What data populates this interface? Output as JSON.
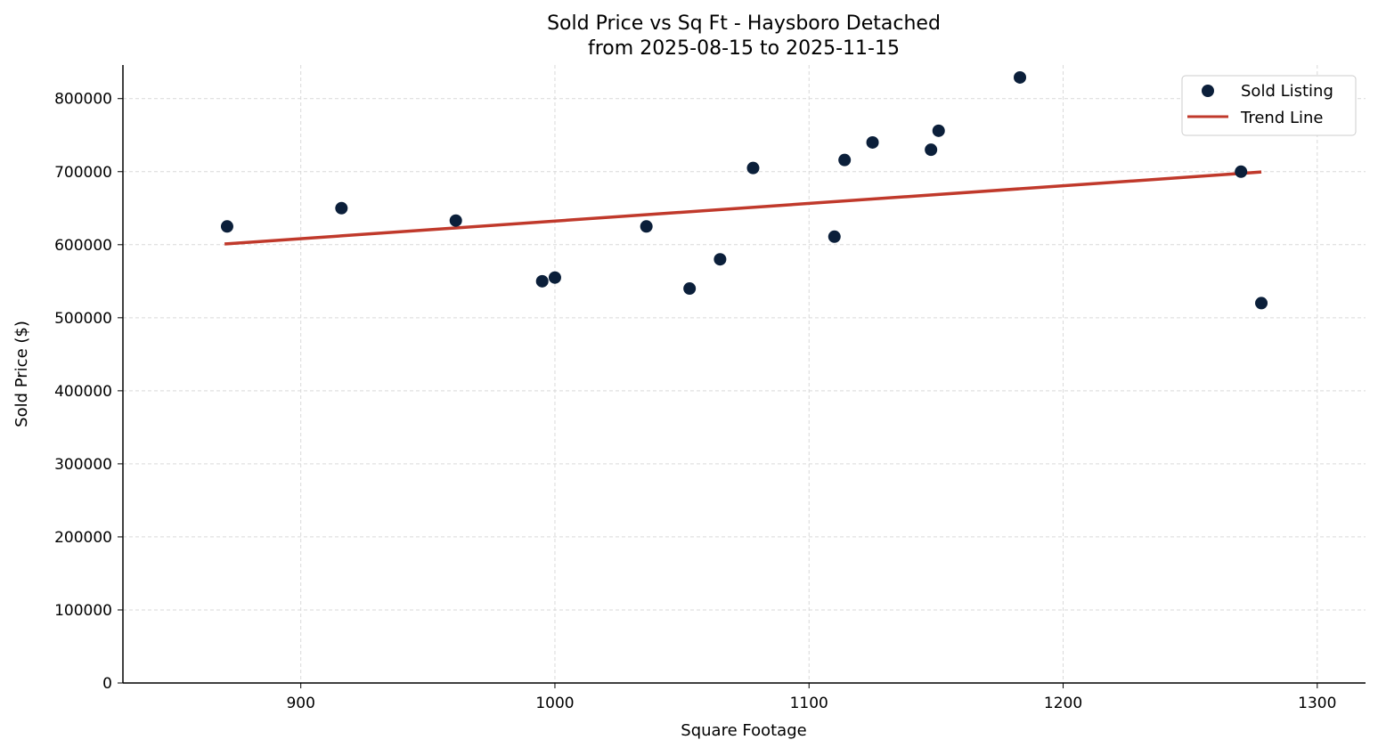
{
  "chart_data": {
    "type": "scatter",
    "title": "Sold Price vs Sq Ft - Haysboro Detached",
    "subtitle": "from 2025-08-15 to 2025-11-15",
    "xlabel": "Square Footage",
    "ylabel": "Sold Price ($)",
    "xlim": [
      830,
      1319
    ],
    "ylim": [
      0,
      846000
    ],
    "xticks": [
      900,
      1000,
      1100,
      1200,
      1300
    ],
    "yticks": [
      0,
      100000,
      200000,
      300000,
      400000,
      500000,
      600000,
      700000,
      800000
    ],
    "grid": true,
    "legend_position": "top-right",
    "colors": {
      "points": "#0b1f3a",
      "trend": "#c0392b",
      "grid": "#d9d9d9"
    },
    "series": [
      {
        "name": "Sold Listing",
        "kind": "scatter",
        "points": [
          [
            871,
            625000
          ],
          [
            916,
            650000
          ],
          [
            961,
            633000
          ],
          [
            995,
            550000
          ],
          [
            1000,
            555000
          ],
          [
            1036,
            625000
          ],
          [
            1053,
            540000
          ],
          [
            1065,
            580000
          ],
          [
            1078,
            705000
          ],
          [
            1110,
            611000
          ],
          [
            1114,
            716000
          ],
          [
            1125,
            740000
          ],
          [
            1148,
            730000
          ],
          [
            1151,
            756000
          ],
          [
            1183,
            829000
          ],
          [
            1270,
            700000
          ],
          [
            1278,
            520000
          ]
        ]
      },
      {
        "name": "Trend Line",
        "kind": "line",
        "points": [
          [
            870,
            601000
          ],
          [
            1278,
            699500
          ]
        ]
      }
    ]
  }
}
